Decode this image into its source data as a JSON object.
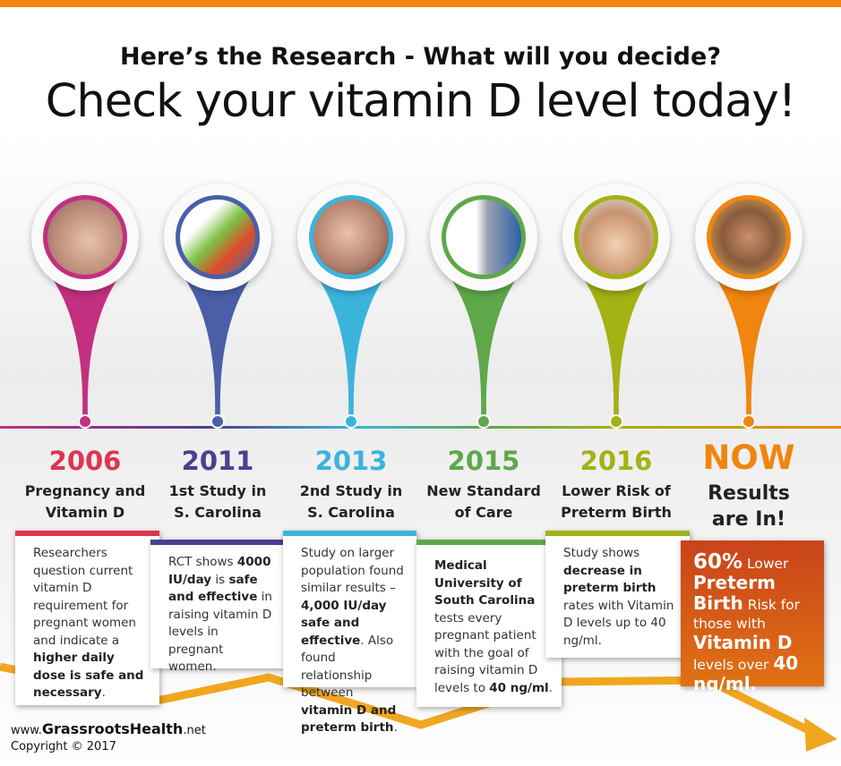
{
  "header": {
    "line1": "Here’s the Research - What will you decide?",
    "line2": "Check your vitamin D level today!"
  },
  "colors": {
    "accent": "#f0850f",
    "2006": "#e0334e",
    "2011": "#4b3f8f",
    "2013": "#3bb4dc",
    "2015": "#5ea84a",
    "2016": "#a3b214",
    "now": "#f0850f"
  },
  "milestones": [
    {
      "year": "2006",
      "title": [
        "Pregnancy and",
        "Vitamin D"
      ],
      "image": "pregnant-belly-photo",
      "color": "#e0334e",
      "pin": "#c2307f",
      "text": [
        {
          "t": "Researchers question current vitamin D requirement for pregnant women and indicate a "
        },
        {
          "t": "higher daily dose is safe and necessary",
          "b": true
        },
        {
          "t": "."
        }
      ]
    },
    {
      "year": "2011",
      "title": [
        "1st Study in",
        "S. Carolina"
      ],
      "image": "growth-chart-photo",
      "color": "#4b3f8f",
      "pin": "#4b5fa8",
      "text": [
        {
          "t": "RCT shows "
        },
        {
          "t": "4000 IU/day",
          "b": true
        },
        {
          "t": " is "
        },
        {
          "t": "safe and effective",
          "b": true
        },
        {
          "t": " in raising vitamin D levels in pregnant women."
        }
      ]
    },
    {
      "year": "2013",
      "title": [
        "2nd Study in",
        "S. Carolina"
      ],
      "image": "child-face-photo",
      "color": "#3bb4dc",
      "pin": "#3bb4dc",
      "text": [
        {
          "t": "Study on larger population found similar results – "
        },
        {
          "t": "4,000 IU/day safe and effective",
          "b": true
        },
        {
          "t": ". Also found relationship between "
        },
        {
          "t": "vitamin D and preterm birth",
          "b": true
        },
        {
          "t": "."
        }
      ]
    },
    {
      "year": "2015",
      "title": [
        "New Standard",
        "of Care"
      ],
      "image": "doctor-stethoscope-photo",
      "color": "#5ea84a",
      "pin": "#5ea84a",
      "text": [
        {
          "t": "Medical University of South Carolina",
          "b": true
        },
        {
          "t": " tests every pregnant patient with the goal of raising vitamin D levels to "
        },
        {
          "t": "40 ng/ml",
          "b": true
        },
        {
          "t": "."
        }
      ]
    },
    {
      "year": "2016",
      "title": [
        "Lower Risk of",
        "Preterm Birth"
      ],
      "image": "babies-photo",
      "color": "#a3b214",
      "pin": "#a3b214",
      "text": [
        {
          "t": "Study shows "
        },
        {
          "t": "decrease in preterm birth",
          "b": true
        },
        {
          "t": " rates with Vitamin D levels up to 40 ng/ml."
        }
      ]
    }
  ],
  "now": {
    "year": "NOW",
    "title": [
      "Results",
      "are In!"
    ],
    "image": "smiling-girls-photo",
    "color": "#f0850f",
    "text": [
      {
        "t": "60%",
        "b": true,
        "big": true
      },
      {
        "t": " Lower "
      },
      {
        "t": "Preterm Birth",
        "b": true
      },
      {
        "t": " Risk for those with "
      },
      {
        "t": "Vitamin D",
        "b": true
      },
      {
        "t": " levels over "
      },
      {
        "t": "40 ng/ml.",
        "b": true
      }
    ]
  },
  "footer": {
    "www": "www.",
    "brand": "GrassrootsHealth",
    "tld": ".net",
    "copyright": "Copyright © 2017"
  }
}
